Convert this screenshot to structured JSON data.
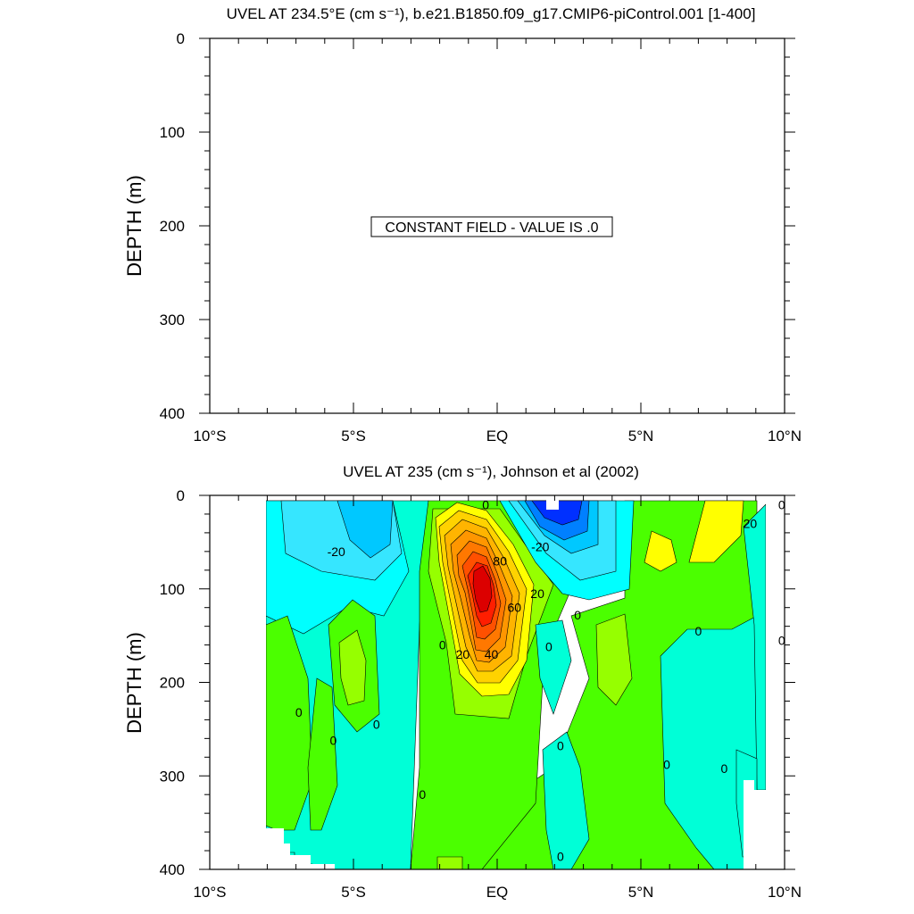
{
  "chart_data": [
    {
      "type": "heatmap",
      "title": "UVEL AT 234.5°E (cm s⁻¹), b.e21.B1850.f09_g17.CMIP6-piControl.001 [1-400]",
      "ylabel": "DEPTH (m)",
      "xlabel": "",
      "xlim": [
        -10,
        10
      ],
      "ylim": [
        400,
        0
      ],
      "x_ticks": [
        {
          "value": -10,
          "label": "10°S"
        },
        {
          "value": -5,
          "label": "5°S"
        },
        {
          "value": 0,
          "label": "EQ"
        },
        {
          "value": 5,
          "label": "5°N"
        },
        {
          "value": 10,
          "label": "10°N"
        }
      ],
      "y_ticks": [
        {
          "value": 0,
          "label": "0"
        },
        {
          "value": 100,
          "label": "100"
        },
        {
          "value": 200,
          "label": "200"
        },
        {
          "value": 300,
          "label": "300"
        },
        {
          "value": 400,
          "label": "400"
        }
      ],
      "annotation": "CONSTANT FIELD - VALUE IS .0",
      "constant_value": 0
    },
    {
      "type": "heatmap",
      "title": "UVEL AT 235 (cm s⁻¹), Johnson et al (2002)",
      "ylabel": "DEPTH (m)",
      "xlabel": "",
      "xlim": [
        -10,
        10
      ],
      "ylim": [
        400,
        0
      ],
      "x_ticks": [
        {
          "value": -10,
          "label": "10°S"
        },
        {
          "value": -5,
          "label": "5°S"
        },
        {
          "value": 0,
          "label": "EQ"
        },
        {
          "value": 5,
          "label": "5°N"
        },
        {
          "value": 10,
          "label": "10°N"
        }
      ],
      "y_ticks": [
        {
          "value": 0,
          "label": "0"
        },
        {
          "value": 100,
          "label": "100"
        },
        {
          "value": 200,
          "label": "200"
        },
        {
          "value": 300,
          "label": "300"
        },
        {
          "value": 400,
          "label": "400"
        }
      ],
      "contour_interval": 10,
      "contour_labels": [
        {
          "lon": -0.4,
          "depth": 10,
          "text": "0"
        },
        {
          "lon": -5.6,
          "depth": 60,
          "text": "-20"
        },
        {
          "lon": 1.5,
          "depth": 55,
          "text": "-20"
        },
        {
          "lon": 0.1,
          "depth": 70,
          "text": "80"
        },
        {
          "lon": 0.6,
          "depth": 120,
          "text": "60"
        },
        {
          "lon": 1.4,
          "depth": 105,
          "text": "20"
        },
        {
          "lon": -1.2,
          "depth": 170,
          "text": "20"
        },
        {
          "lon": -0.2,
          "depth": 170,
          "text": "40"
        },
        {
          "lon": 8.8,
          "depth": 30,
          "text": "20"
        },
        {
          "lon": 9.9,
          "depth": 10,
          "text": "0"
        },
        {
          "lon": 2.8,
          "depth": 128,
          "text": "0"
        },
        {
          "lon": -1.9,
          "depth": 160,
          "text": "0"
        },
        {
          "lon": 1.8,
          "depth": 162,
          "text": "0"
        },
        {
          "lon": 7.0,
          "depth": 145,
          "text": "0"
        },
        {
          "lon": 9.9,
          "depth": 155,
          "text": "0"
        },
        {
          "lon": -6.9,
          "depth": 232,
          "text": "0"
        },
        {
          "lon": -5.7,
          "depth": 262,
          "text": "0"
        },
        {
          "lon": -4.2,
          "depth": 245,
          "text": "0"
        },
        {
          "lon": 2.2,
          "depth": 268,
          "text": "0"
        },
        {
          "lon": 5.9,
          "depth": 288,
          "text": "0"
        },
        {
          "lon": 7.9,
          "depth": 292,
          "text": "0"
        },
        {
          "lon": -2.6,
          "depth": 320,
          "text": "0"
        },
        {
          "lon": 2.2,
          "depth": 386,
          "text": "0"
        }
      ]
    }
  ]
}
